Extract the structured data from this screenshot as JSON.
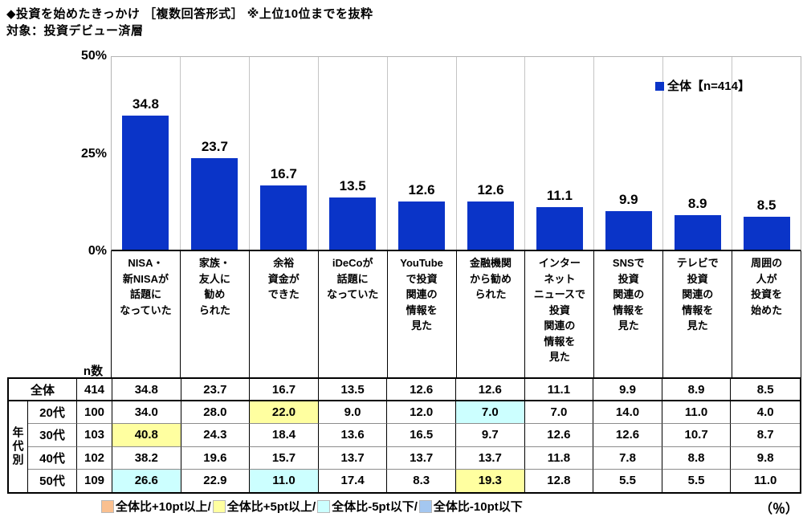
{
  "header": {
    "title": "◆投資を始めたきっかけ ［複数回答形式］ ※上位10位までを抜粋",
    "subtitle": "対象：投資デビュー済層"
  },
  "chart_data": {
    "type": "bar",
    "title": "投資を始めたきっかけ（上位10位）",
    "categories": [
      "NISA・\n新NISAが\n話題に\nなっていた",
      "家族・\n友人に\n勧め\nられた",
      "余裕\n資金が\nできた",
      "iDeCoが\n話題に\nなっていた",
      "YouTube\nで投資\n関連の\n情報を\n見た",
      "金融機関\nから勧め\nられた",
      "インター\nネット\nニュースで\n投資\n関連の\n情報を\n見た",
      "SNSで\n投資\n関連の\n情報を\n見た",
      "テレビで\n投資\n関連の\n情報を\n見た",
      "周囲の\n人が\n投資を\n始めた"
    ],
    "values": [
      34.8,
      23.7,
      16.7,
      13.5,
      12.6,
      12.6,
      11.1,
      9.9,
      8.9,
      8.5
    ],
    "ylim": [
      0,
      50
    ],
    "yticks": [
      "50%",
      "25%",
      "0%"
    ],
    "grid": "vertical-separators",
    "bar_color": "#0a34c8",
    "legend": {
      "label": "全体【n=414】",
      "color": "#0a34c8",
      "position": "top-right"
    },
    "unit": "％"
  },
  "table": {
    "n_header": "n数",
    "group_label": "年代別",
    "highlight_colors": {
      "plus10": "#fac090",
      "plus5": "#ffffa0",
      "minus5": "#ccffff",
      "minus10": "#a4c7f0"
    },
    "rows": [
      {
        "label": "全体",
        "n": "414",
        "values": [
          "34.8",
          "23.7",
          "16.7",
          "13.5",
          "12.6",
          "12.6",
          "11.1",
          "9.9",
          "8.9",
          "8.5"
        ],
        "highlights": [
          null,
          null,
          null,
          null,
          null,
          null,
          null,
          null,
          null,
          null
        ]
      },
      {
        "label": "20代",
        "n": "100",
        "values": [
          "34.0",
          "28.0",
          "22.0",
          "9.0",
          "12.0",
          "7.0",
          "7.0",
          "14.0",
          "11.0",
          "4.0"
        ],
        "highlights": [
          null,
          null,
          "plus5",
          null,
          null,
          "minus5",
          null,
          null,
          null,
          null
        ]
      },
      {
        "label": "30代",
        "n": "103",
        "values": [
          "40.8",
          "24.3",
          "18.4",
          "13.6",
          "16.5",
          "9.7",
          "12.6",
          "12.6",
          "10.7",
          "8.7"
        ],
        "highlights": [
          "plus5",
          null,
          null,
          null,
          null,
          null,
          null,
          null,
          null,
          null
        ]
      },
      {
        "label": "40代",
        "n": "102",
        "values": [
          "38.2",
          "19.6",
          "15.7",
          "13.7",
          "13.7",
          "13.7",
          "11.8",
          "7.8",
          "8.8",
          "9.8"
        ],
        "highlights": [
          null,
          null,
          null,
          null,
          null,
          null,
          null,
          null,
          null,
          null
        ]
      },
      {
        "label": "50代",
        "n": "109",
        "values": [
          "26.6",
          "22.9",
          "11.0",
          "17.4",
          "8.3",
          "19.3",
          "12.8",
          "5.5",
          "5.5",
          "11.0"
        ],
        "highlights": [
          "minus5",
          null,
          "minus5",
          null,
          null,
          "plus5",
          null,
          null,
          null,
          null
        ]
      }
    ]
  },
  "footer_legend": {
    "items": [
      {
        "key": "plus10",
        "color": "#fac090",
        "label": "全体比+10pt以上/"
      },
      {
        "key": "plus5",
        "color": "#ffffa0",
        "label": "全体比+5pt以上/"
      },
      {
        "key": "minus5",
        "color": "#ccffff",
        "label": "全体比-5pt以下/"
      },
      {
        "key": "minus10",
        "color": "#a4c7f0",
        "label": "全体比-10pt以下"
      }
    ],
    "unit": "（％）"
  }
}
